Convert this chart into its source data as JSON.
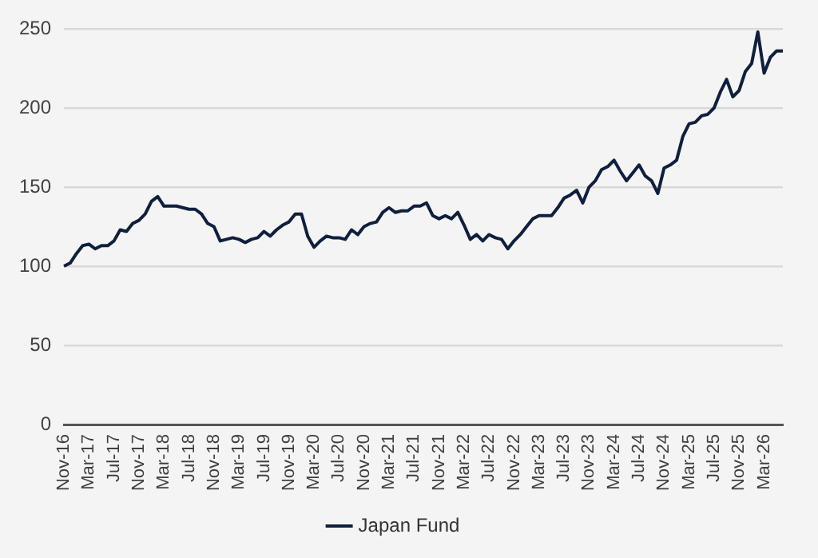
{
  "chart_data": {
    "type": "line",
    "categories": [
      "Nov-16",
      null,
      null,
      null,
      "Mar-17",
      null,
      null,
      null,
      "Jul-17",
      null,
      null,
      null,
      "Nov-17",
      null,
      null,
      null,
      "Mar-18",
      null,
      null,
      null,
      "Jul-18",
      null,
      null,
      null,
      "Nov-18",
      null,
      null,
      null,
      "Mar-19",
      null,
      null,
      null,
      "Jul-19",
      null,
      null,
      null,
      "Nov-19",
      null,
      null,
      null,
      "Mar-20",
      null,
      null,
      null,
      "Jul-20",
      null,
      null,
      null,
      "Nov-20",
      null,
      null,
      null,
      "Mar-21",
      null,
      null,
      null,
      "Jul-21",
      null,
      null,
      null,
      "Nov-21",
      null,
      null,
      null,
      "Mar-22",
      null,
      null,
      null,
      "Jul-22",
      null,
      null,
      null,
      "Nov-22",
      null,
      null,
      null,
      "Mar-23",
      null,
      null,
      null,
      "Jul-23",
      null,
      null,
      null,
      "Nov-23",
      null,
      null,
      null,
      "Mar-24",
      null,
      null,
      null,
      "Jul-24",
      null,
      null,
      null,
      "Nov-24",
      null,
      null,
      null,
      "Mar-25",
      null,
      null,
      null,
      "Jul-25",
      null,
      null,
      null,
      "Nov-25",
      null,
      null,
      null,
      "Mar-26",
      null,
      null,
      null
    ],
    "series": [
      {
        "name": "Japan Fund",
        "color": "#0f1f3d",
        "values": [
          100,
          102,
          108,
          113,
          114,
          111,
          113,
          113,
          116,
          123,
          122,
          127,
          129,
          133,
          141,
          144,
          138,
          138,
          138,
          137,
          136,
          136,
          133,
          127,
          125,
          116,
          117,
          118,
          117,
          115,
          117,
          118,
          122,
          119,
          123,
          126,
          128,
          133,
          133,
          119,
          112,
          116,
          119,
          118,
          118,
          117,
          123,
          120,
          125,
          127,
          128,
          134,
          137,
          134,
          135,
          135,
          138,
          138,
          140,
          132,
          130,
          132,
          130,
          134,
          126,
          117,
          120,
          116,
          120,
          118,
          117,
          111,
          116,
          120,
          125,
          130,
          132,
          132,
          132,
          137,
          143,
          145,
          148,
          140,
          150,
          154,
          161,
          163,
          167,
          160,
          154,
          159,
          164,
          157,
          154,
          146,
          162,
          164,
          167,
          182,
          190,
          191,
          195,
          196,
          200,
          210,
          218,
          207,
          211,
          223,
          228,
          248,
          222,
          232,
          236,
          236
        ]
      }
    ],
    "ylim": [
      0,
      250
    ],
    "yticks": [
      0,
      50,
      100,
      150,
      200,
      250
    ],
    "grid": "y",
    "legend": "bottom",
    "marker": "none",
    "line_style": "solid"
  }
}
